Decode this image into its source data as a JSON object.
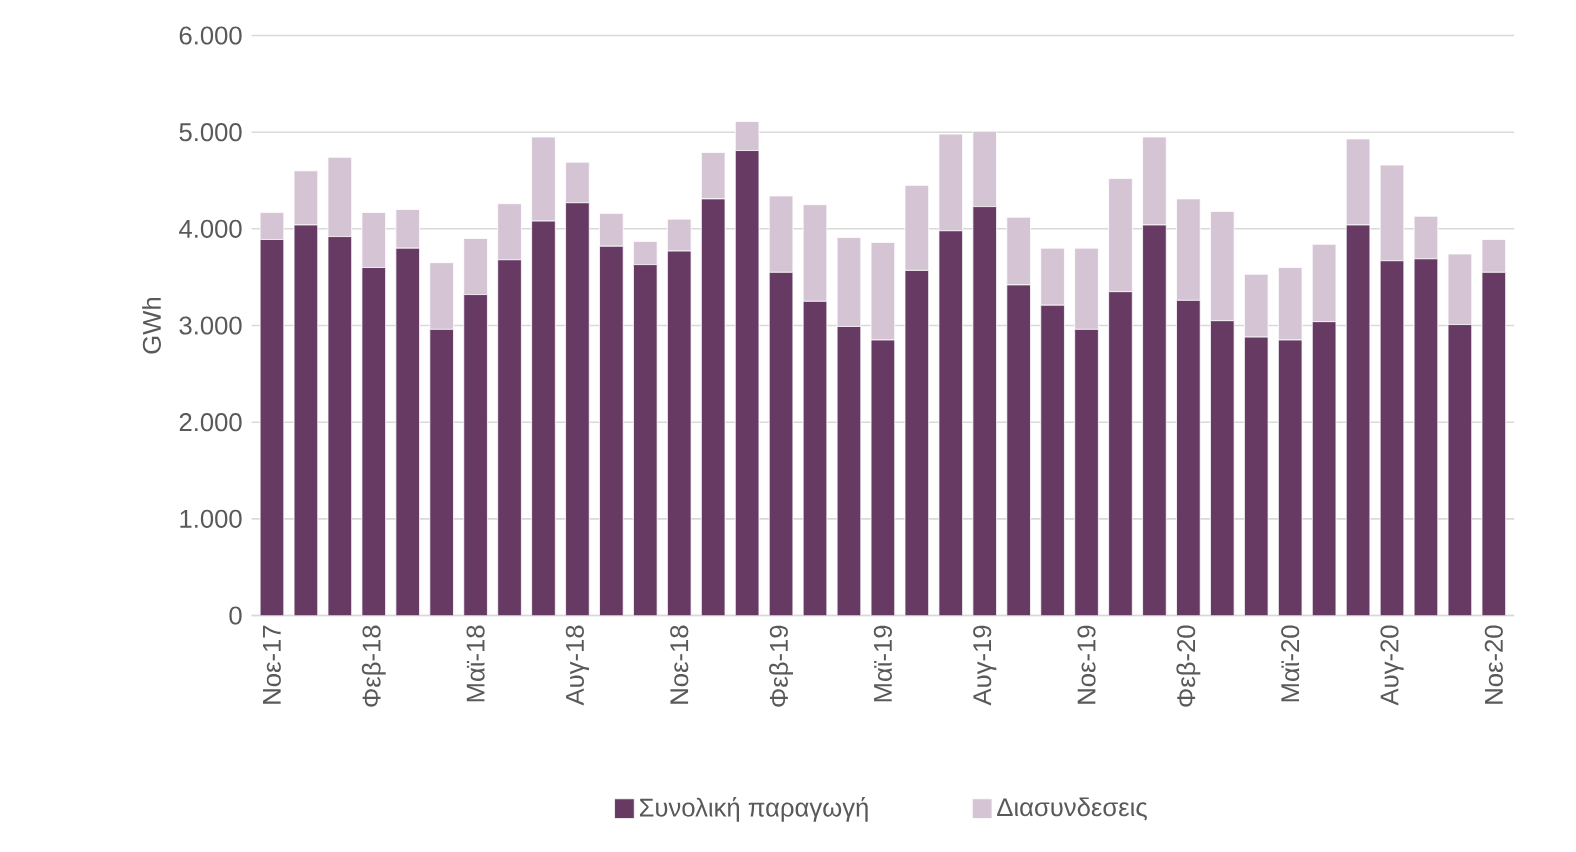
{
  "chart_data": {
    "type": "bar",
    "stacked": true,
    "ylabel": "GWh",
    "categories": [
      "Νοε-17",
      null,
      null,
      "Φεβ-18",
      null,
      null,
      "Μαϊ-18",
      null,
      null,
      "Αυγ-18",
      null,
      null,
      "Νοε-18",
      null,
      null,
      "Φεβ-19",
      null,
      null,
      "Μαϊ-19",
      null,
      null,
      "Αυγ-19",
      null,
      null,
      "Νοε-19",
      null,
      null,
      "Φεβ-20",
      null,
      null,
      "Μαϊ-20",
      null,
      null,
      "Αυγ-20",
      null,
      null,
      "Νοε-20"
    ],
    "series": [
      {
        "name": "Συνολική παραγωγή",
        "color": "#673a64",
        "values": [
          3890,
          4040,
          3920,
          3600,
          3800,
          2960,
          3320,
          3680,
          4080,
          4270,
          3820,
          3630,
          3770,
          4310,
          4810,
          3550,
          3250,
          2990,
          2850,
          3570,
          3980,
          4230,
          3420,
          3210,
          2960,
          3350,
          4040,
          3260,
          3050,
          2880,
          2850,
          3040,
          4040,
          3670,
          3690,
          3010,
          3550
        ]
      },
      {
        "name": "Διασυνδεσεις",
        "color": "#d4c4d4",
        "values": [
          280,
          560,
          820,
          570,
          400,
          690,
          580,
          580,
          870,
          420,
          340,
          240,
          330,
          480,
          300,
          790,
          1000,
          920,
          1010,
          880,
          1000,
          780,
          700,
          590,
          840,
          1170,
          910,
          1050,
          1130,
          650,
          750,
          800,
          890,
          990,
          440,
          730,
          340
        ]
      }
    ],
    "ylim": [
      0,
      6000
    ],
    "yticks": [
      {
        "value": 0,
        "label": "0"
      },
      {
        "value": 1000,
        "label": "1.000"
      },
      {
        "value": 2000,
        "label": "2.000"
      },
      {
        "value": 3000,
        "label": "3.000"
      },
      {
        "value": 4000,
        "label": "4.000"
      },
      {
        "value": 5000,
        "label": "5.000"
      },
      {
        "value": 6000,
        "label": "6.000"
      }
    ],
    "grid": "y",
    "legend": "bottom"
  }
}
